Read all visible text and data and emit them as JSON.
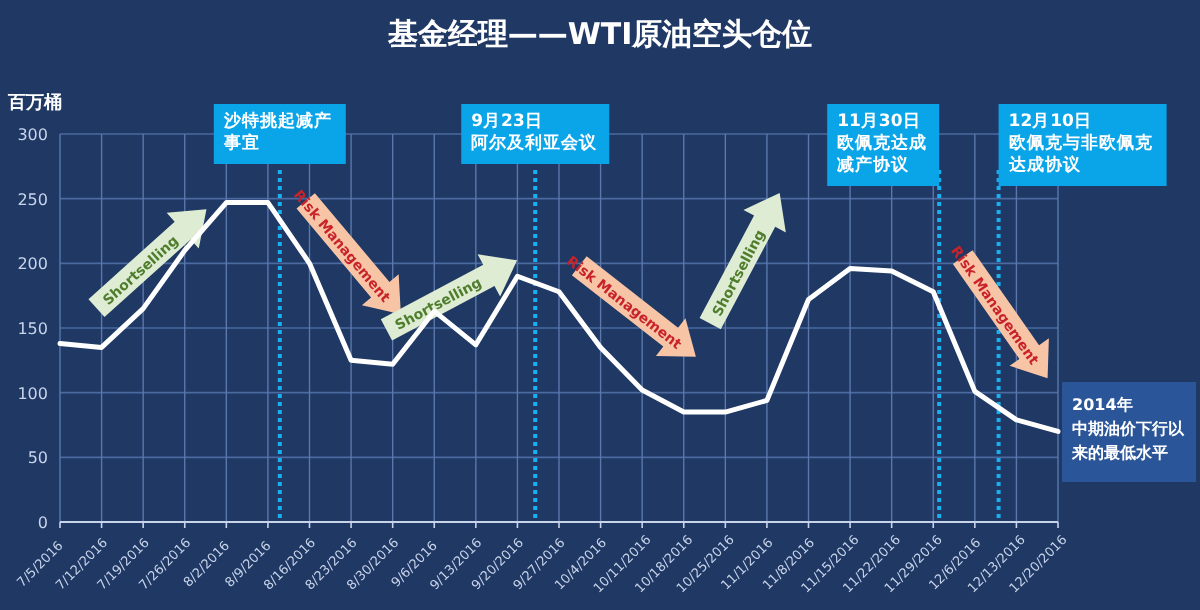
{
  "chart_data": {
    "type": "line",
    "title": "基金经理——WTI原油空头仓位",
    "ylabel": "百万桶",
    "x": [
      "2016-07-05",
      "2016-07-12",
      "2016-07-19",
      "2016-07-26",
      "2016-08-02",
      "2016-08-09",
      "2016-08-16",
      "2016-08-23",
      "2016-08-30",
      "2016-09-06",
      "2016-09-13",
      "2016-09-20",
      "2016-09-27",
      "2016-10-04",
      "2016-10-11",
      "2016-10-18",
      "2016-10-25",
      "2016-11-01",
      "2016-11-08",
      "2016-11-15",
      "2016-11-22",
      "2016-11-29",
      "2016-12-06",
      "2016-12-13",
      "2016-12-20"
    ],
    "series": [
      {
        "color": "#ffffff",
        "values": [
          138,
          135,
          165,
          210,
          247,
          247,
          200,
          125,
          122,
          163,
          137,
          190,
          178,
          135,
          102,
          85,
          85,
          94,
          172,
          196,
          194,
          178,
          101,
          79,
          70
        ]
      }
    ],
    "xlim": [
      "2016-07-05",
      "2016-12-20"
    ],
    "xticks": [
      {
        "value": "2016-07-05",
        "label": "7/5/2016"
      },
      {
        "value": "2016-07-12",
        "label": "7/12/2016"
      },
      {
        "value": "2016-07-19",
        "label": "7/19/2016"
      },
      {
        "value": "2016-07-26",
        "label": "7/26/2016"
      },
      {
        "value": "2016-08-02",
        "label": "8/2/2016"
      },
      {
        "value": "2016-08-09",
        "label": "8/9/2016"
      },
      {
        "value": "2016-08-16",
        "label": "8/16/2016"
      },
      {
        "value": "2016-08-23",
        "label": "8/23/2016"
      },
      {
        "value": "2016-08-30",
        "label": "8/30/2016"
      },
      {
        "value": "2016-09-06",
        "label": "9/6/2016"
      },
      {
        "value": "2016-09-13",
        "label": "9/13/2016"
      },
      {
        "value": "2016-09-20",
        "label": "9/20/2016"
      },
      {
        "value": "2016-09-27",
        "label": "9/27/2016"
      },
      {
        "value": "2016-10-04",
        "label": "10/4/2016"
      },
      {
        "value": "2016-10-11",
        "label": "10/11/2016"
      },
      {
        "value": "2016-10-18",
        "label": "10/18/2016"
      },
      {
        "value": "2016-10-25",
        "label": "10/25/2016"
      },
      {
        "value": "2016-11-01",
        "label": "11/1/2016"
      },
      {
        "value": "2016-11-08",
        "label": "11/8/2016"
      },
      {
        "value": "2016-11-15",
        "label": "11/15/2016"
      },
      {
        "value": "2016-11-22",
        "label": "11/22/2016"
      },
      {
        "value": "2016-11-29",
        "label": "11/29/2016"
      },
      {
        "value": "2016-12-06",
        "label": "12/6/2016"
      },
      {
        "value": "2016-12-13",
        "label": "12/13/2016"
      },
      {
        "value": "2016-12-20",
        "label": "12/20/2016"
      }
    ],
    "ylim": [
      0,
      300
    ],
    "yticks": [
      0,
      50,
      100,
      150,
      200,
      250,
      300
    ],
    "grid": true,
    "ref_lines": [
      {
        "axis": "x",
        "value": "2016-08-11",
        "label": "沙特挑起减产事宜",
        "color": "#1ab0f0",
        "line_style": "dotted"
      },
      {
        "axis": "x",
        "value": "2016-09-23",
        "label": "9月23日阿尔及利亚会议",
        "color": "#1ab0f0",
        "line_style": "dotted"
      },
      {
        "axis": "x",
        "value": "2016-11-30",
        "label": "11月30日欧佩克达成减产协议",
        "color": "#1ab0f0",
        "line_style": "dotted"
      },
      {
        "axis": "x",
        "value": "2016-12-10",
        "label": "12月10日欧佩克与非欧佩克达成协议",
        "color": "#1ab0f0",
        "line_style": "dotted"
      }
    ],
    "annotations": [
      "Shortselling",
      "Risk Management",
      "Shortselling",
      "Risk Management",
      "Shortselling",
      "Risk Management",
      "2014年中期油价下行以来的最低水平"
    ]
  }
}
